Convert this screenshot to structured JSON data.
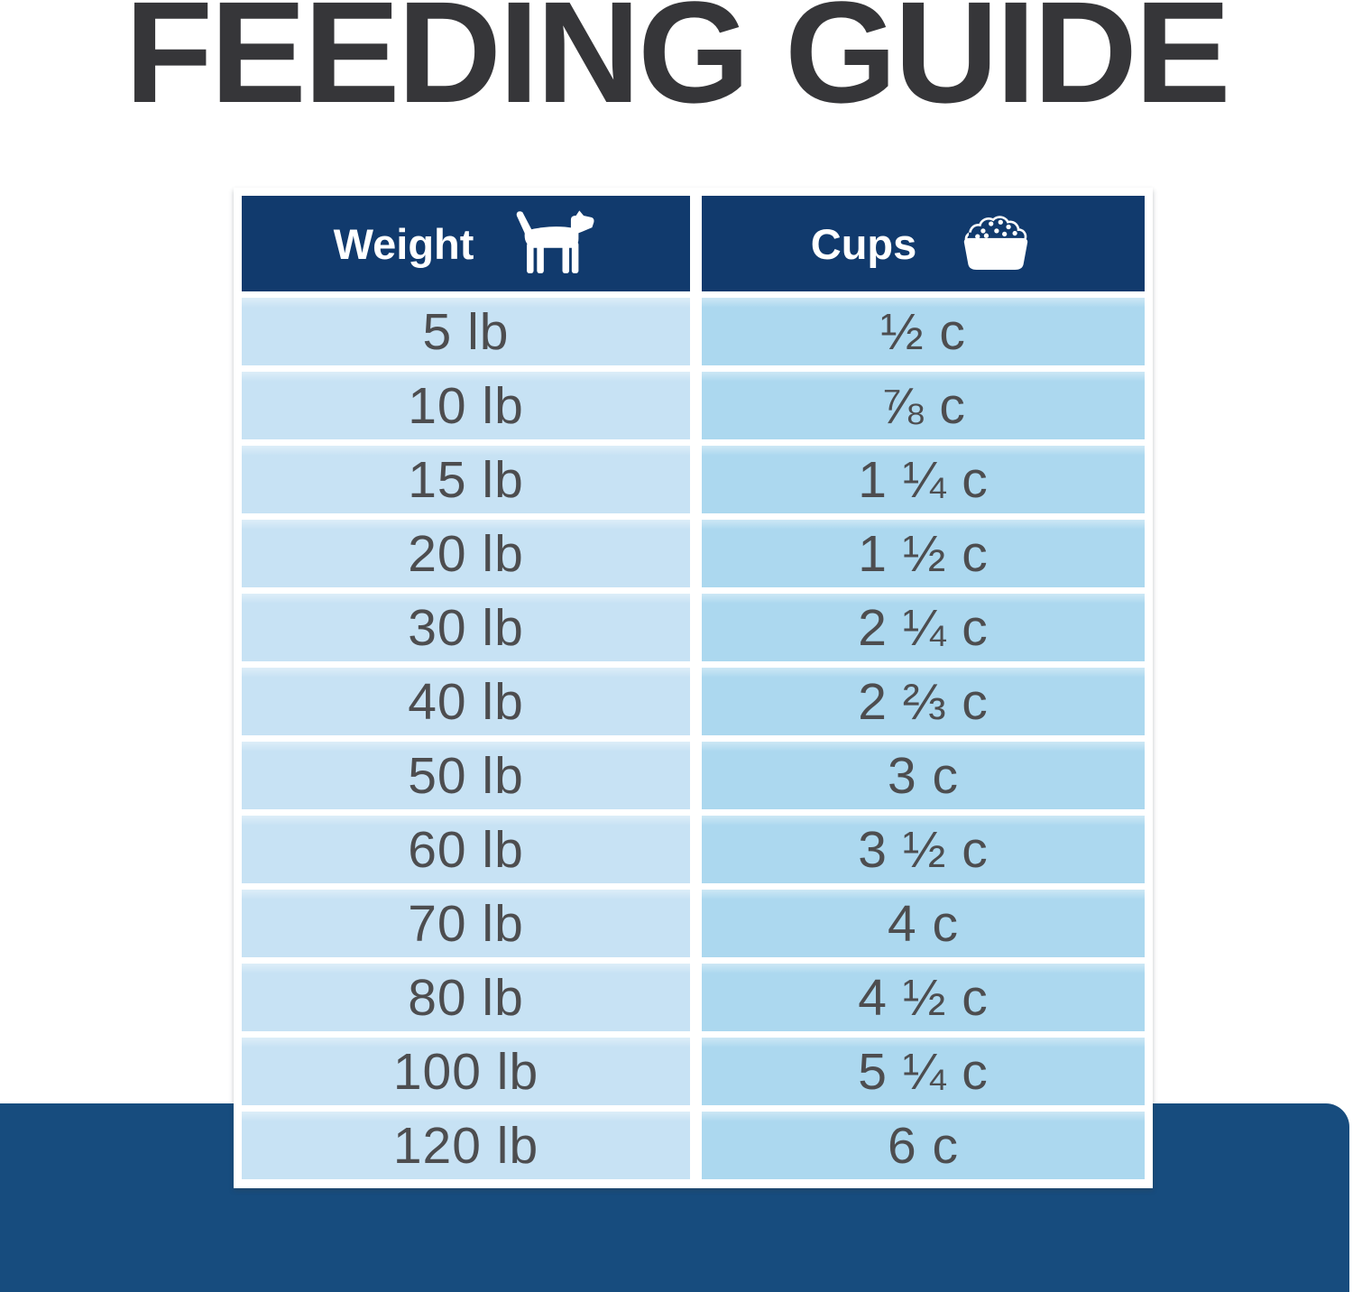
{
  "title": "FEEDING GUIDE",
  "table": {
    "columns": [
      {
        "label": "Weight",
        "icon": "dog-icon"
      },
      {
        "label": "Cups",
        "icon": "food-bowl-icon"
      }
    ],
    "rows": [
      {
        "weight": "5 lb",
        "cups": "½ c"
      },
      {
        "weight": "10 lb",
        "cups": "⅞ c"
      },
      {
        "weight": "15 lb",
        "cups": "1 ¼ c"
      },
      {
        "weight": "20 lb",
        "cups": "1 ½ c"
      },
      {
        "weight": "30 lb",
        "cups": "2 ¼ c"
      },
      {
        "weight": "40 lb",
        "cups": "2 ⅔ c"
      },
      {
        "weight": "50 lb",
        "cups": "3 c"
      },
      {
        "weight": "60 lb",
        "cups": "3 ½ c"
      },
      {
        "weight": "70 lb",
        "cups": "4 c"
      },
      {
        "weight": "80 lb",
        "cups": "4 ½ c"
      },
      {
        "weight": "100 lb",
        "cups": "5 ¼ c"
      },
      {
        "weight": "120 lb",
        "cups": "6 c"
      }
    ]
  },
  "chart_data": {
    "type": "table",
    "title": "FEEDING GUIDE",
    "columns": [
      "Weight",
      "Cups"
    ],
    "categories": [
      "5 lb",
      "10 lb",
      "15 lb",
      "20 lb",
      "30 lb",
      "40 lb",
      "50 lb",
      "60 lb",
      "70 lb",
      "80 lb",
      "100 lb",
      "120 lb"
    ],
    "weights_lb": [
      5,
      10,
      15,
      20,
      30,
      40,
      50,
      60,
      70,
      80,
      100,
      120
    ],
    "cups_labels": [
      "½ c",
      "⅞ c",
      "1 ¼ c",
      "1 ½ c",
      "2 ¼ c",
      "2 ⅔ c",
      "3 c",
      "3 ½ c",
      "4 c",
      "4 ½ c",
      "5 ¼ c",
      "6 c"
    ],
    "cups_values": [
      0.5,
      0.875,
      1.25,
      1.5,
      2.25,
      2.667,
      3,
      3.5,
      4,
      4.5,
      5.25,
      6
    ]
  },
  "colors": {
    "title_text": "#363639",
    "header_navy": "#113a6d",
    "band_navy": "#174c7e",
    "cell_left": "#c7e2f4",
    "cell_right": "#acd8ef",
    "cell_text": "#4d4d4f"
  }
}
